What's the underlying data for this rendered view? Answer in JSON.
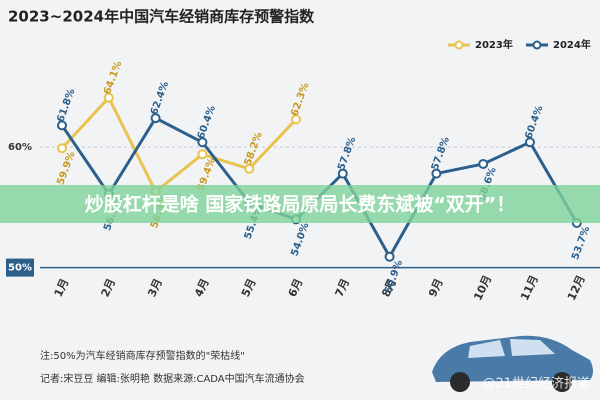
{
  "chart_data": {
    "type": "line",
    "title": "2023~2024年中国汽车经销商库存预警指数",
    "categories": [
      "1月",
      "2月",
      "3月",
      "4月",
      "5月",
      "6月",
      "7月",
      "8月",
      "9月",
      "10月",
      "11月",
      "12月"
    ],
    "series": [
      {
        "name": "2023年",
        "color": "#e9c24f",
        "values": [
          59.9,
          64.1,
          56.3,
          59.4,
          58.2,
          62.3,
          null,
          null,
          null,
          null,
          null,
          null
        ],
        "value_labels": [
          "59.9%",
          "64.1%",
          "56.3%",
          "59.4%",
          "58.2%",
          "62.3%",
          null,
          null,
          null,
          null,
          null,
          null
        ]
      },
      {
        "name": "2024年",
        "color": "#2c5f8a",
        "values": [
          61.8,
          56.1,
          62.4,
          60.4,
          55.4,
          54.0,
          57.8,
          50.9,
          57.8,
          58.6,
          60.4,
          53.7
        ],
        "value_labels": [
          "61.8%",
          "56.1%",
          "62.4%",
          "60.4%",
          "55.4%",
          "54.0%",
          "57.8%",
          "50.9%",
          "57.8%",
          "58.6%",
          "60.4%",
          "53.7%"
        ]
      }
    ],
    "ylim": [
      49.8,
      69.3
    ],
    "yticks": [
      {
        "value": 50,
        "label": "50%"
      },
      {
        "value": 60,
        "label": "60%"
      }
    ],
    "grid": true,
    "legend": "top-right",
    "note": "注:50%为汽车经销商库存预警指数的\"荣枯线\"",
    "credits": "记者:宋豆豆  编辑:张明艳  数据来源:CADA中国汽车流通协会",
    "watermark": "@21世纪经济报道",
    "overlay_banner": "炒股杠杆是啥 国家铁路局原局长费东斌被“双开”！"
  }
}
